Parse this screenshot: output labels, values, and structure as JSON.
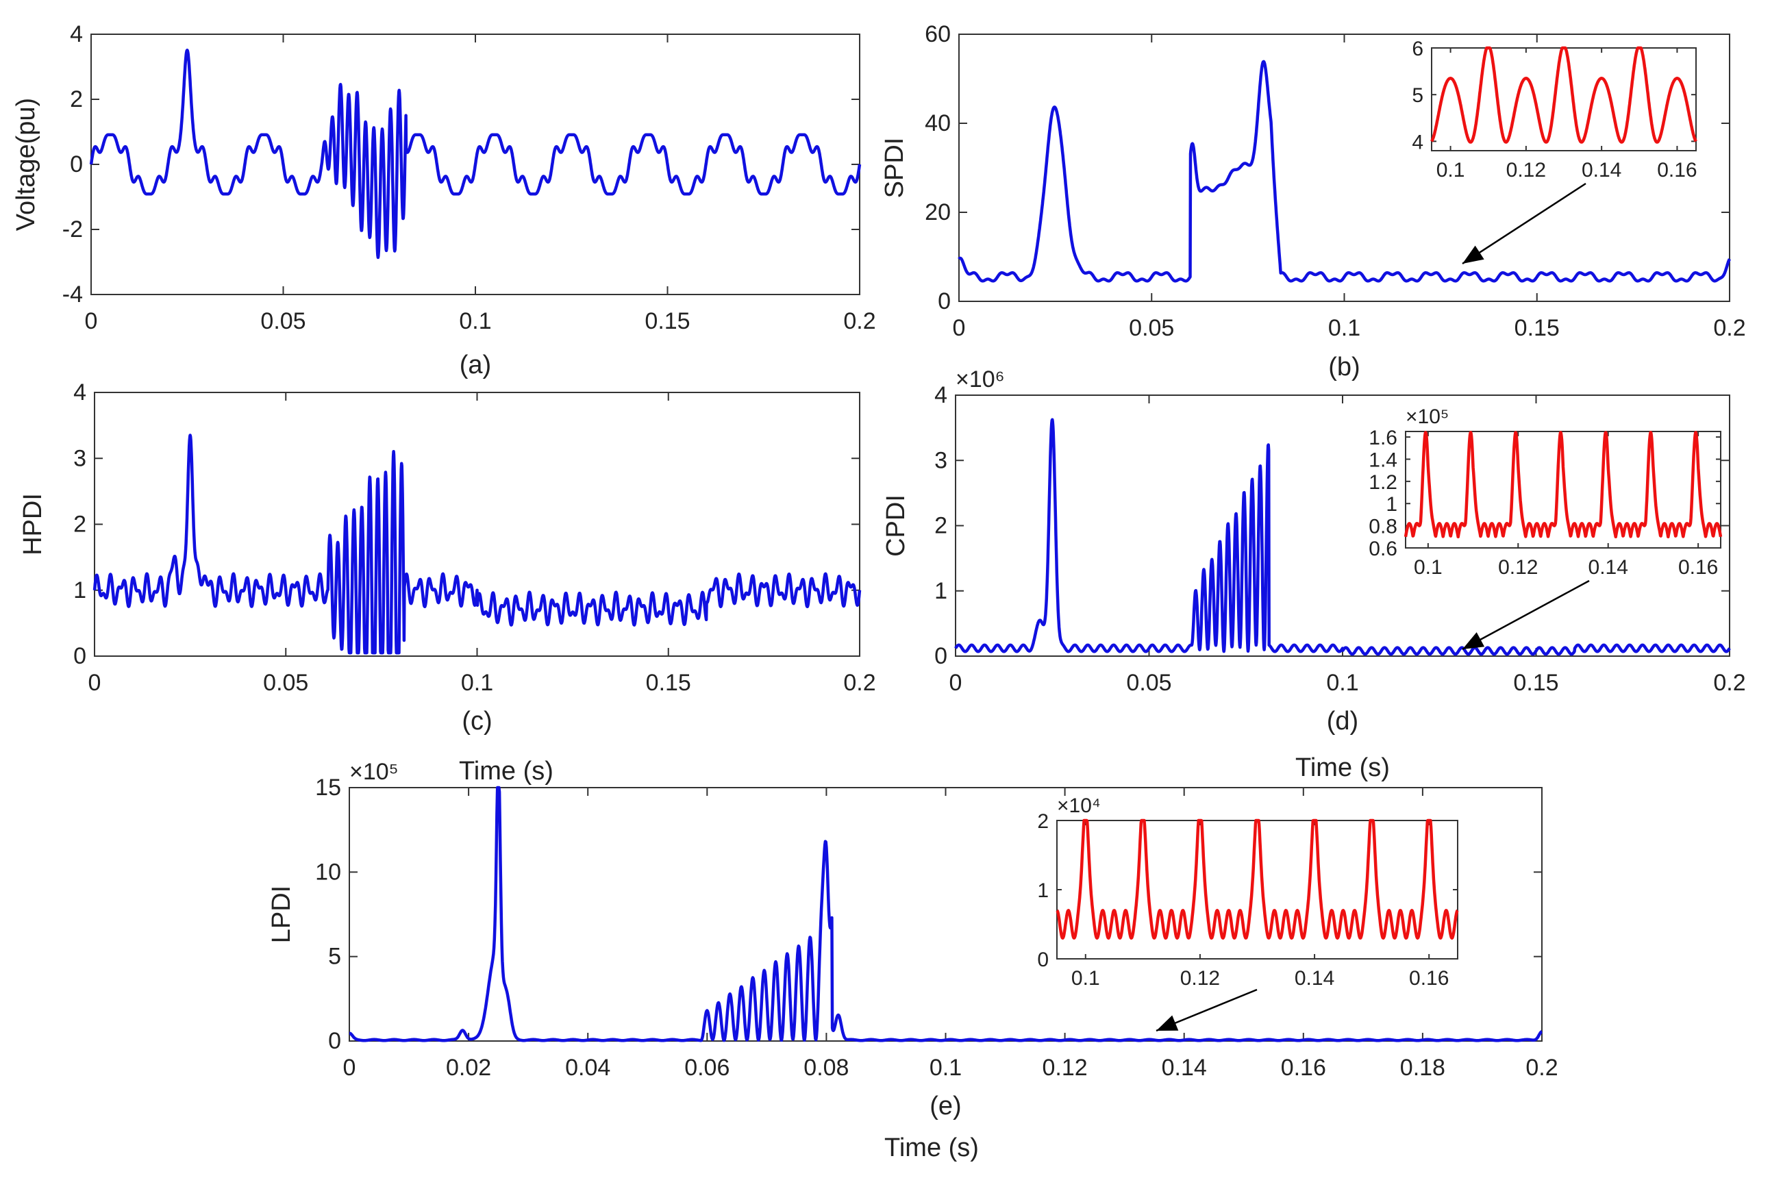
{
  "chart_data": [
    {
      "id": "a",
      "type": "line",
      "caption": "(a)",
      "xlabel": "",
      "ylabel": "Voltage(pu)",
      "xlim": [
        0,
        0.2
      ],
      "ylim": [
        -4,
        4
      ],
      "exponent": "",
      "xticks": [
        0,
        0.05,
        0.1,
        0.15,
        0.2
      ],
      "xtick_labels": [
        "0",
        "0.05",
        "0.1",
        "0.15",
        "0.2"
      ],
      "yticks": [
        -4,
        -2,
        0,
        2,
        4
      ],
      "ytick_labels": [
        "-4",
        "-2",
        "0",
        "2",
        "4"
      ],
      "series": [
        {
          "name": "voltage",
          "color": "#1010e0"
        }
      ]
    },
    {
      "id": "b",
      "type": "line",
      "caption": "(b)",
      "xlabel": "",
      "ylabel": "SPDI",
      "xlim": [
        0,
        0.2
      ],
      "ylim": [
        0,
        60
      ],
      "exponent": "",
      "xticks": [
        0,
        0.05,
        0.1,
        0.15,
        0.2
      ],
      "xtick_labels": [
        "0",
        "0.05",
        "0.1",
        "0.15",
        "0.2"
      ],
      "yticks": [
        0,
        20,
        40,
        60
      ],
      "ytick_labels": [
        "0",
        "20",
        "40",
        "60"
      ],
      "series": [
        {
          "name": "SPDI",
          "color": "#1010e0"
        }
      ],
      "inset": {
        "xlim": [
          0.095,
          0.165
        ],
        "ylim": [
          3.8,
          6
        ],
        "exponent": "",
        "xticks": [
          0.1,
          0.12,
          0.14,
          0.16
        ],
        "xtick_labels": [
          "0.1",
          "0.12",
          "0.14",
          "0.16"
        ],
        "yticks": [
          4,
          5,
          6
        ],
        "ytick_labels": [
          "4",
          "5",
          "6"
        ],
        "series": [
          {
            "name": "SPDI zoom",
            "color": "#ee1111"
          }
        ]
      }
    },
    {
      "id": "c",
      "type": "line",
      "caption": "(c)",
      "xlabel": "",
      "ylabel": "HPDI",
      "xlim": [
        0,
        0.2
      ],
      "ylim": [
        0,
        4
      ],
      "exponent": "",
      "xticks": [
        0,
        0.05,
        0.1,
        0.15,
        0.2
      ],
      "xtick_labels": [
        "0",
        "0.05",
        "0.1",
        "0.15",
        "0.2"
      ],
      "yticks": [
        0,
        1,
        2,
        3,
        4
      ],
      "ytick_labels": [
        "0",
        "1",
        "2",
        "3",
        "4"
      ],
      "series": [
        {
          "name": "HPDI",
          "color": "#1010e0"
        }
      ]
    },
    {
      "id": "d",
      "type": "line",
      "caption": "(d)",
      "xlabel": "Time (s)",
      "ylabel": "CPDI",
      "xlim": [
        0,
        0.2
      ],
      "ylim": [
        0,
        4
      ],
      "exponent": "×10⁶",
      "xticks": [
        0,
        0.05,
        0.1,
        0.15,
        0.2
      ],
      "xtick_labels": [
        "0",
        "0.05",
        "0.1",
        "0.15",
        "0.2"
      ],
      "yticks": [
        0,
        1,
        2,
        3,
        4
      ],
      "ytick_labels": [
        "0",
        "1",
        "2",
        "3",
        "4"
      ],
      "series": [
        {
          "name": "CPDI",
          "color": "#1010e0"
        }
      ],
      "inset": {
        "xlim": [
          0.095,
          0.165
        ],
        "ylim": [
          0.6,
          1.65
        ],
        "exponent": "×10⁵",
        "xticks": [
          0.1,
          0.12,
          0.14,
          0.16
        ],
        "xtick_labels": [
          "0.1",
          "0.12",
          "0.14",
          "0.16"
        ],
        "yticks": [
          0.6,
          0.8,
          1.0,
          1.2,
          1.4,
          1.6
        ],
        "ytick_labels": [
          "0.6",
          "0.8",
          "1",
          "1.2",
          "1.4",
          "1.6"
        ],
        "series": [
          {
            "name": "CPDI zoom",
            "color": "#ee1111"
          }
        ]
      }
    },
    {
      "id": "e",
      "type": "line",
      "caption": "(e)",
      "xlabel": "Time (s)",
      "ylabel": "LPDI",
      "xlim": [
        0,
        0.2
      ],
      "ylim": [
        0,
        15
      ],
      "exponent": "×10⁵",
      "exponent_suffix": "Time (s)",
      "xticks": [
        0,
        0.02,
        0.04,
        0.06,
        0.08,
        0.1,
        0.12,
        0.14,
        0.16,
        0.18,
        0.2
      ],
      "xtick_labels": [
        "0",
        "0.02",
        "0.04",
        "0.06",
        "0.08",
        "0.1",
        "0.12",
        "0.14",
        "0.16",
        "0.18",
        "0.2"
      ],
      "yticks": [
        0,
        5,
        10,
        15
      ],
      "ytick_labels": [
        "0",
        "5",
        "10",
        "15"
      ],
      "series": [
        {
          "name": "LPDI",
          "color": "#1010e0"
        }
      ],
      "inset": {
        "xlim": [
          0.095,
          0.165
        ],
        "ylim": [
          0,
          2
        ],
        "exponent": "×10⁴",
        "xticks": [
          0.1,
          0.12,
          0.14,
          0.16
        ],
        "xtick_labels": [
          "0.1",
          "0.12",
          "0.14",
          "0.16"
        ],
        "yticks": [
          0,
          1,
          2
        ],
        "ytick_labels": [
          "0",
          "1",
          "2"
        ],
        "series": [
          {
            "name": "LPDI zoom",
            "color": "#ee1111"
          }
        ]
      }
    }
  ]
}
